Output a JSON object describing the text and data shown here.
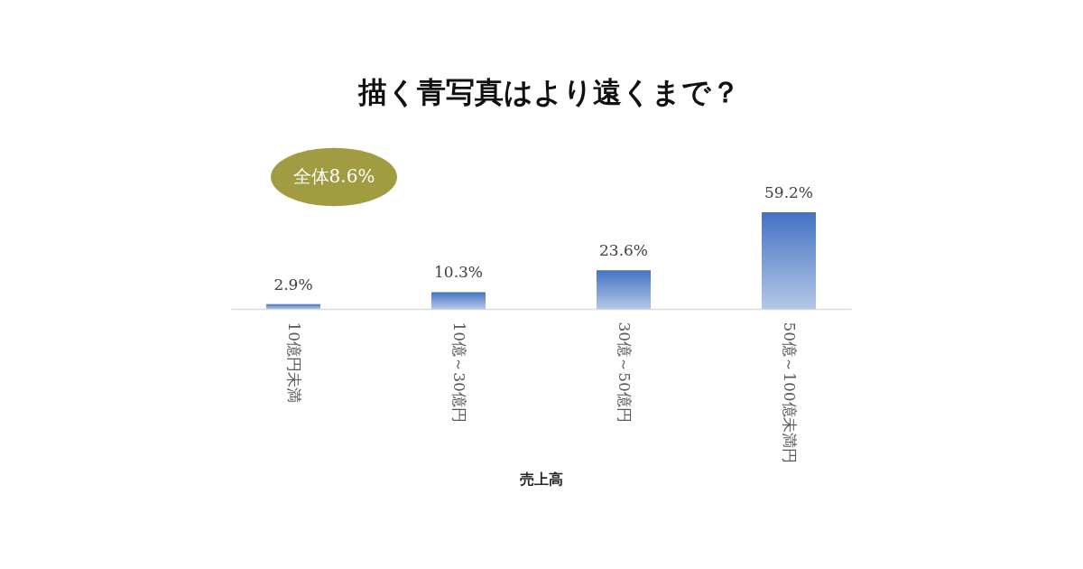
{
  "chart_data": {
    "type": "bar",
    "title": "描く青写真はより遠くまで？",
    "xlabel": "売上高",
    "categories": [
      "10億円未満",
      "10億～30億円",
      "30億～50億円",
      "50億～100億未満円"
    ],
    "values": [
      2.9,
      10.3,
      23.6,
      59.2
    ],
    "value_labels": [
      "2.9%",
      "10.3%",
      "23.6%",
      "59.2%"
    ],
    "color": "#4472c4",
    "annotations": [
      "全体8.6%"
    ]
  }
}
